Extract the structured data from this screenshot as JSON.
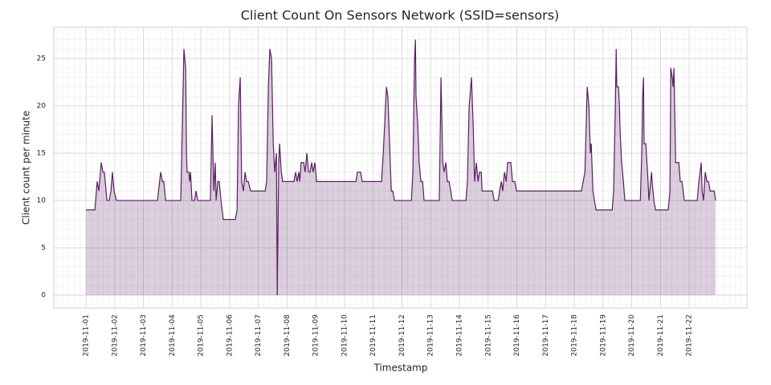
{
  "chart_data": {
    "type": "area",
    "title": "Client Count On Sensors Network (SSID=sensors)",
    "x_label": "Timestamp",
    "y_label": "Client count per minute",
    "x": [
      0,
      0.31,
      0.39,
      0.45,
      0.53,
      0.59,
      0.64,
      0.73,
      0.81,
      0.87,
      0.92,
      0.98,
      1.06,
      2.49,
      2.6,
      2.66,
      2.71,
      2.77,
      3.3,
      3.41,
      3.47,
      3.5,
      3.52,
      3.58,
      3.61,
      3.64,
      3.69,
      3.78,
      3.83,
      3.89,
      4.33,
      4.39,
      4.45,
      4.5,
      4.53,
      4.59,
      4.64,
      4.7,
      4.78,
      5.2,
      5.26,
      5.31,
      5.37,
      5.42,
      5.48,
      5.54,
      5.59,
      5.65,
      5.73,
      6.24,
      6.29,
      6.35,
      6.4,
      6.46,
      6.52,
      6.57,
      6.63,
      6.66,
      6.71,
      6.74,
      6.8,
      6.85,
      7.24,
      7.3,
      7.35,
      7.41,
      7.44,
      7.49,
      7.58,
      7.63,
      7.69,
      7.75,
      7.8,
      7.86,
      7.91,
      7.97,
      8.03,
      9.4,
      9.45,
      9.56,
      9.62,
      10.29,
      10.35,
      10.46,
      10.51,
      10.57,
      10.63,
      10.68,
      10.74,
      11.33,
      11.38,
      11.44,
      11.47,
      11.49,
      11.55,
      11.6,
      11.66,
      11.72,
      11.77,
      12.3,
      12.36,
      12.42,
      12.47,
      12.53,
      12.58,
      12.64,
      12.7,
      12.75,
      13.23,
      13.28,
      13.34,
      13.42,
      13.48,
      13.53,
      13.59,
      13.65,
      13.7,
      13.76,
      13.79,
      14.15,
      14.21,
      14.35,
      14.4,
      14.46,
      14.51,
      14.57,
      14.63,
      14.68,
      14.79,
      14.85,
      14.93,
      14.99,
      17.25,
      17.31,
      17.37,
      17.45,
      17.51,
      17.56,
      17.59,
      17.65,
      17.7,
      17.76,
      18.32,
      18.37,
      18.43,
      18.46,
      18.48,
      18.54,
      18.57,
      18.6,
      18.65,
      18.71,
      18.76,
      19.3,
      19.35,
      19.38,
      19.41,
      19.43,
      19.49,
      19.55,
      19.6,
      19.66,
      19.69,
      19.71,
      19.77,
      19.83,
      20.27,
      20.33,
      20.36,
      20.41,
      20.44,
      20.47,
      20.53,
      20.64,
      20.69,
      20.75,
      20.83,
      21.28,
      21.34,
      21.42,
      21.45,
      21.5,
      21.56,
      21.62,
      21.67,
      21.73,
      21.87,
      21.92
    ],
    "series": [
      {
        "name": "Client count",
        "color": "#5a1e62",
        "values": [
          9,
          9,
          12,
          11,
          14,
          13,
          13,
          10,
          10,
          11,
          13,
          11,
          10,
          10,
          13,
          12,
          12,
          10,
          10,
          26,
          24,
          15,
          13,
          13,
          12,
          13,
          10,
          10,
          11,
          10,
          10,
          19,
          11,
          14,
          10,
          12,
          12,
          10,
          8,
          8,
          9,
          20,
          23,
          12,
          11,
          13,
          12,
          12,
          11,
          11,
          12,
          22,
          26,
          25,
          16,
          13,
          15,
          0,
          14,
          16,
          13,
          12,
          12,
          13,
          12,
          13,
          12,
          14,
          14,
          13,
          15,
          13,
          13,
          14,
          13,
          14,
          12,
          12,
          13,
          13,
          12,
          12,
          15,
          22,
          21,
          16,
          11,
          11,
          10,
          10,
          13,
          25,
          27,
          21,
          18,
          14,
          12,
          12,
          10,
          10,
          23,
          14,
          13,
          14,
          12,
          12,
          11,
          10,
          10,
          12,
          20,
          23,
          18,
          12,
          14,
          12,
          13,
          13,
          11,
          11,
          10,
          10,
          11,
          12,
          11,
          13,
          12,
          14,
          14,
          12,
          12,
          11,
          11,
          12,
          13,
          22,
          20,
          15,
          16,
          11,
          10,
          9,
          9,
          11,
          20,
          26,
          22,
          22,
          20,
          17,
          14,
          12,
          10,
          10,
          15,
          21,
          23,
          16,
          16,
          13,
          10,
          12,
          13,
          12,
          10,
          9,
          9,
          11,
          24,
          23,
          22,
          24,
          14,
          14,
          12,
          12,
          10,
          10,
          12,
          14,
          11,
          10,
          13,
          12,
          12,
          11,
          11,
          10
        ]
      }
    ],
    "xlim": [
      -1.12,
      23.01
    ],
    "ylim": [
      -1.36,
      28.3
    ],
    "xticks": [
      {
        "value": 0,
        "label": "2019-11-01"
      },
      {
        "value": 1,
        "label": "2019-11-02"
      },
      {
        "value": 2,
        "label": "2019-11-03"
      },
      {
        "value": 3,
        "label": "2019-11-04"
      },
      {
        "value": 4,
        "label": "2019-11-05"
      },
      {
        "value": 5,
        "label": "2019-11-06"
      },
      {
        "value": 6,
        "label": "2019-11-07"
      },
      {
        "value": 7,
        "label": "2019-11-08"
      },
      {
        "value": 8,
        "label": "2019-11-09"
      },
      {
        "value": 9,
        "label": "2019-11-10"
      },
      {
        "value": 10,
        "label": "2019-11-11"
      },
      {
        "value": 11,
        "label": "2019-11-12"
      },
      {
        "value": 12,
        "label": "2019-11-13"
      },
      {
        "value": 13,
        "label": "2019-11-14"
      },
      {
        "value": 14,
        "label": "2019-11-15"
      },
      {
        "value": 15,
        "label": "2019-11-16"
      },
      {
        "value": 16,
        "label": "2019-11-17"
      },
      {
        "value": 17,
        "label": "2019-11-18"
      },
      {
        "value": 18,
        "label": "2019-11-19"
      },
      {
        "value": 19,
        "label": "2019-11-20"
      },
      {
        "value": 20,
        "label": "2019-11-21"
      },
      {
        "value": 21,
        "label": "2019-11-22"
      }
    ],
    "yticks": [
      0,
      5,
      10,
      15,
      20,
      25
    ],
    "grid": true,
    "minor_grid": true
  }
}
